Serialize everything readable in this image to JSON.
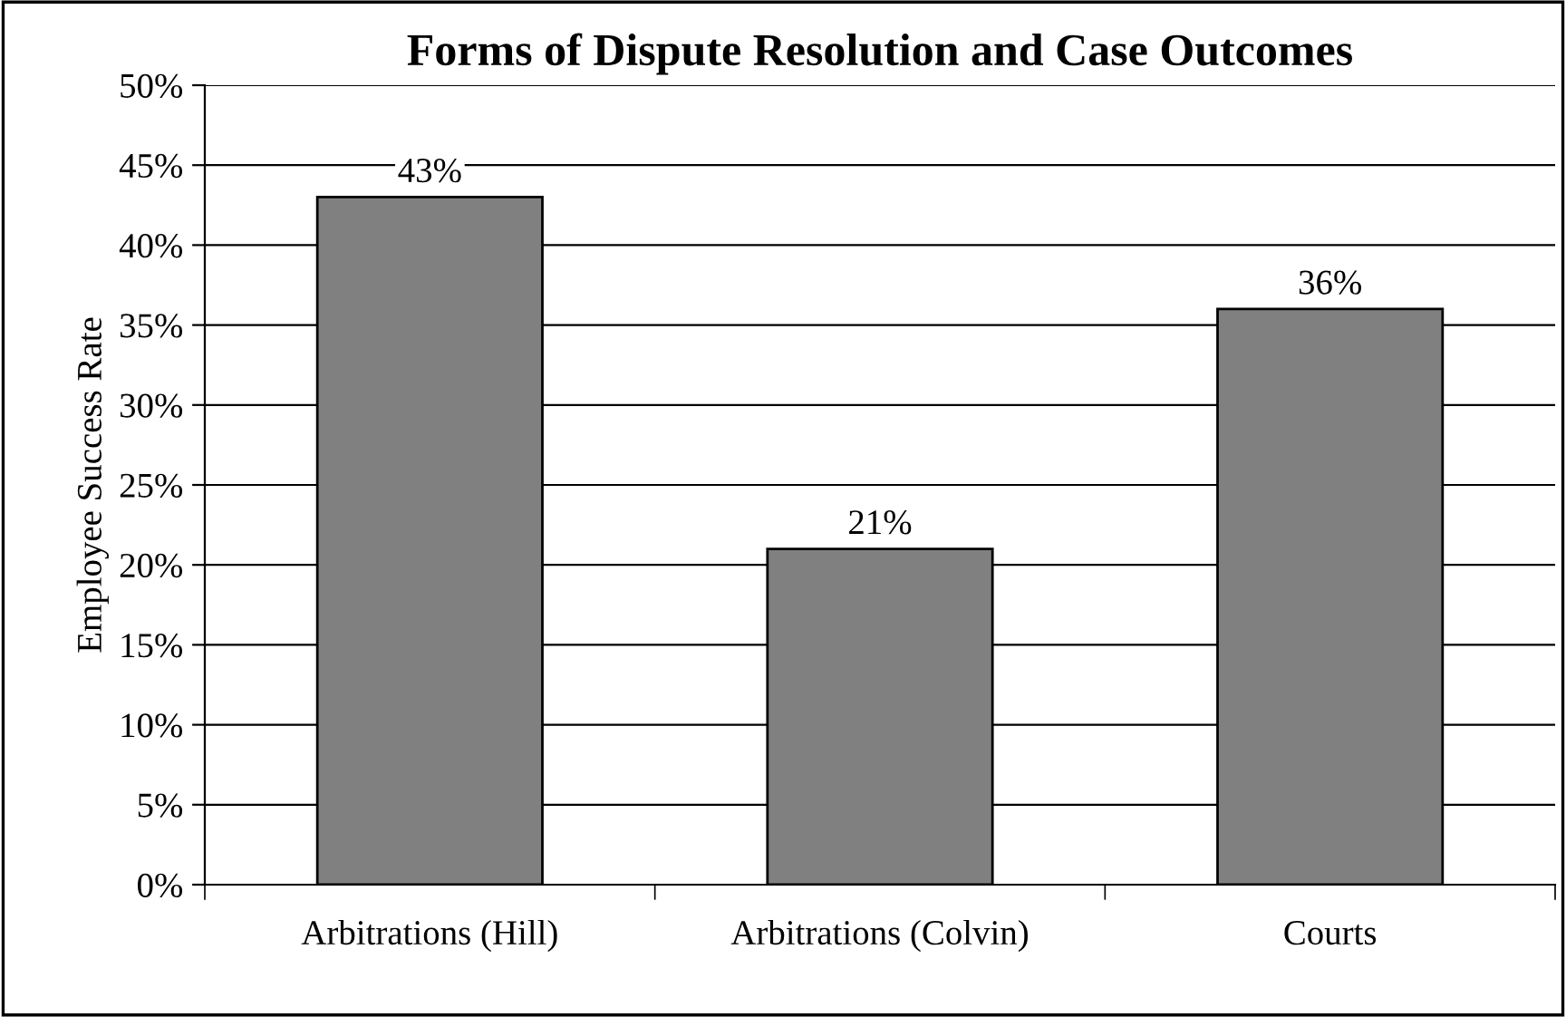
{
  "chart_data": {
    "type": "bar",
    "title": "Forms of Dispute Resolution and Case Outcomes",
    "ylabel": "Employee Success Rate",
    "categories": [
      "Arbitrations (Hill)",
      "Arbitrations (Colvin)",
      "Courts"
    ],
    "values": [
      43,
      21,
      36
    ],
    "value_labels": [
      "43%",
      "21%",
      "36%"
    ],
    "color": "#808080",
    "ylim": [
      0,
      50
    ],
    "yticks": [
      {
        "value": 0,
        "label": "0%"
      },
      {
        "value": 5,
        "label": "5%"
      },
      {
        "value": 10,
        "label": "10%"
      },
      {
        "value": 15,
        "label": "15%"
      },
      {
        "value": 20,
        "label": "20%"
      },
      {
        "value": 25,
        "label": "25%"
      },
      {
        "value": 30,
        "label": "30%"
      },
      {
        "value": 35,
        "label": "35%"
      },
      {
        "value": 40,
        "label": "40%"
      },
      {
        "value": 45,
        "label": "45%"
      },
      {
        "value": 50,
        "label": "50%"
      }
    ],
    "grid": "y",
    "legend": false
  }
}
